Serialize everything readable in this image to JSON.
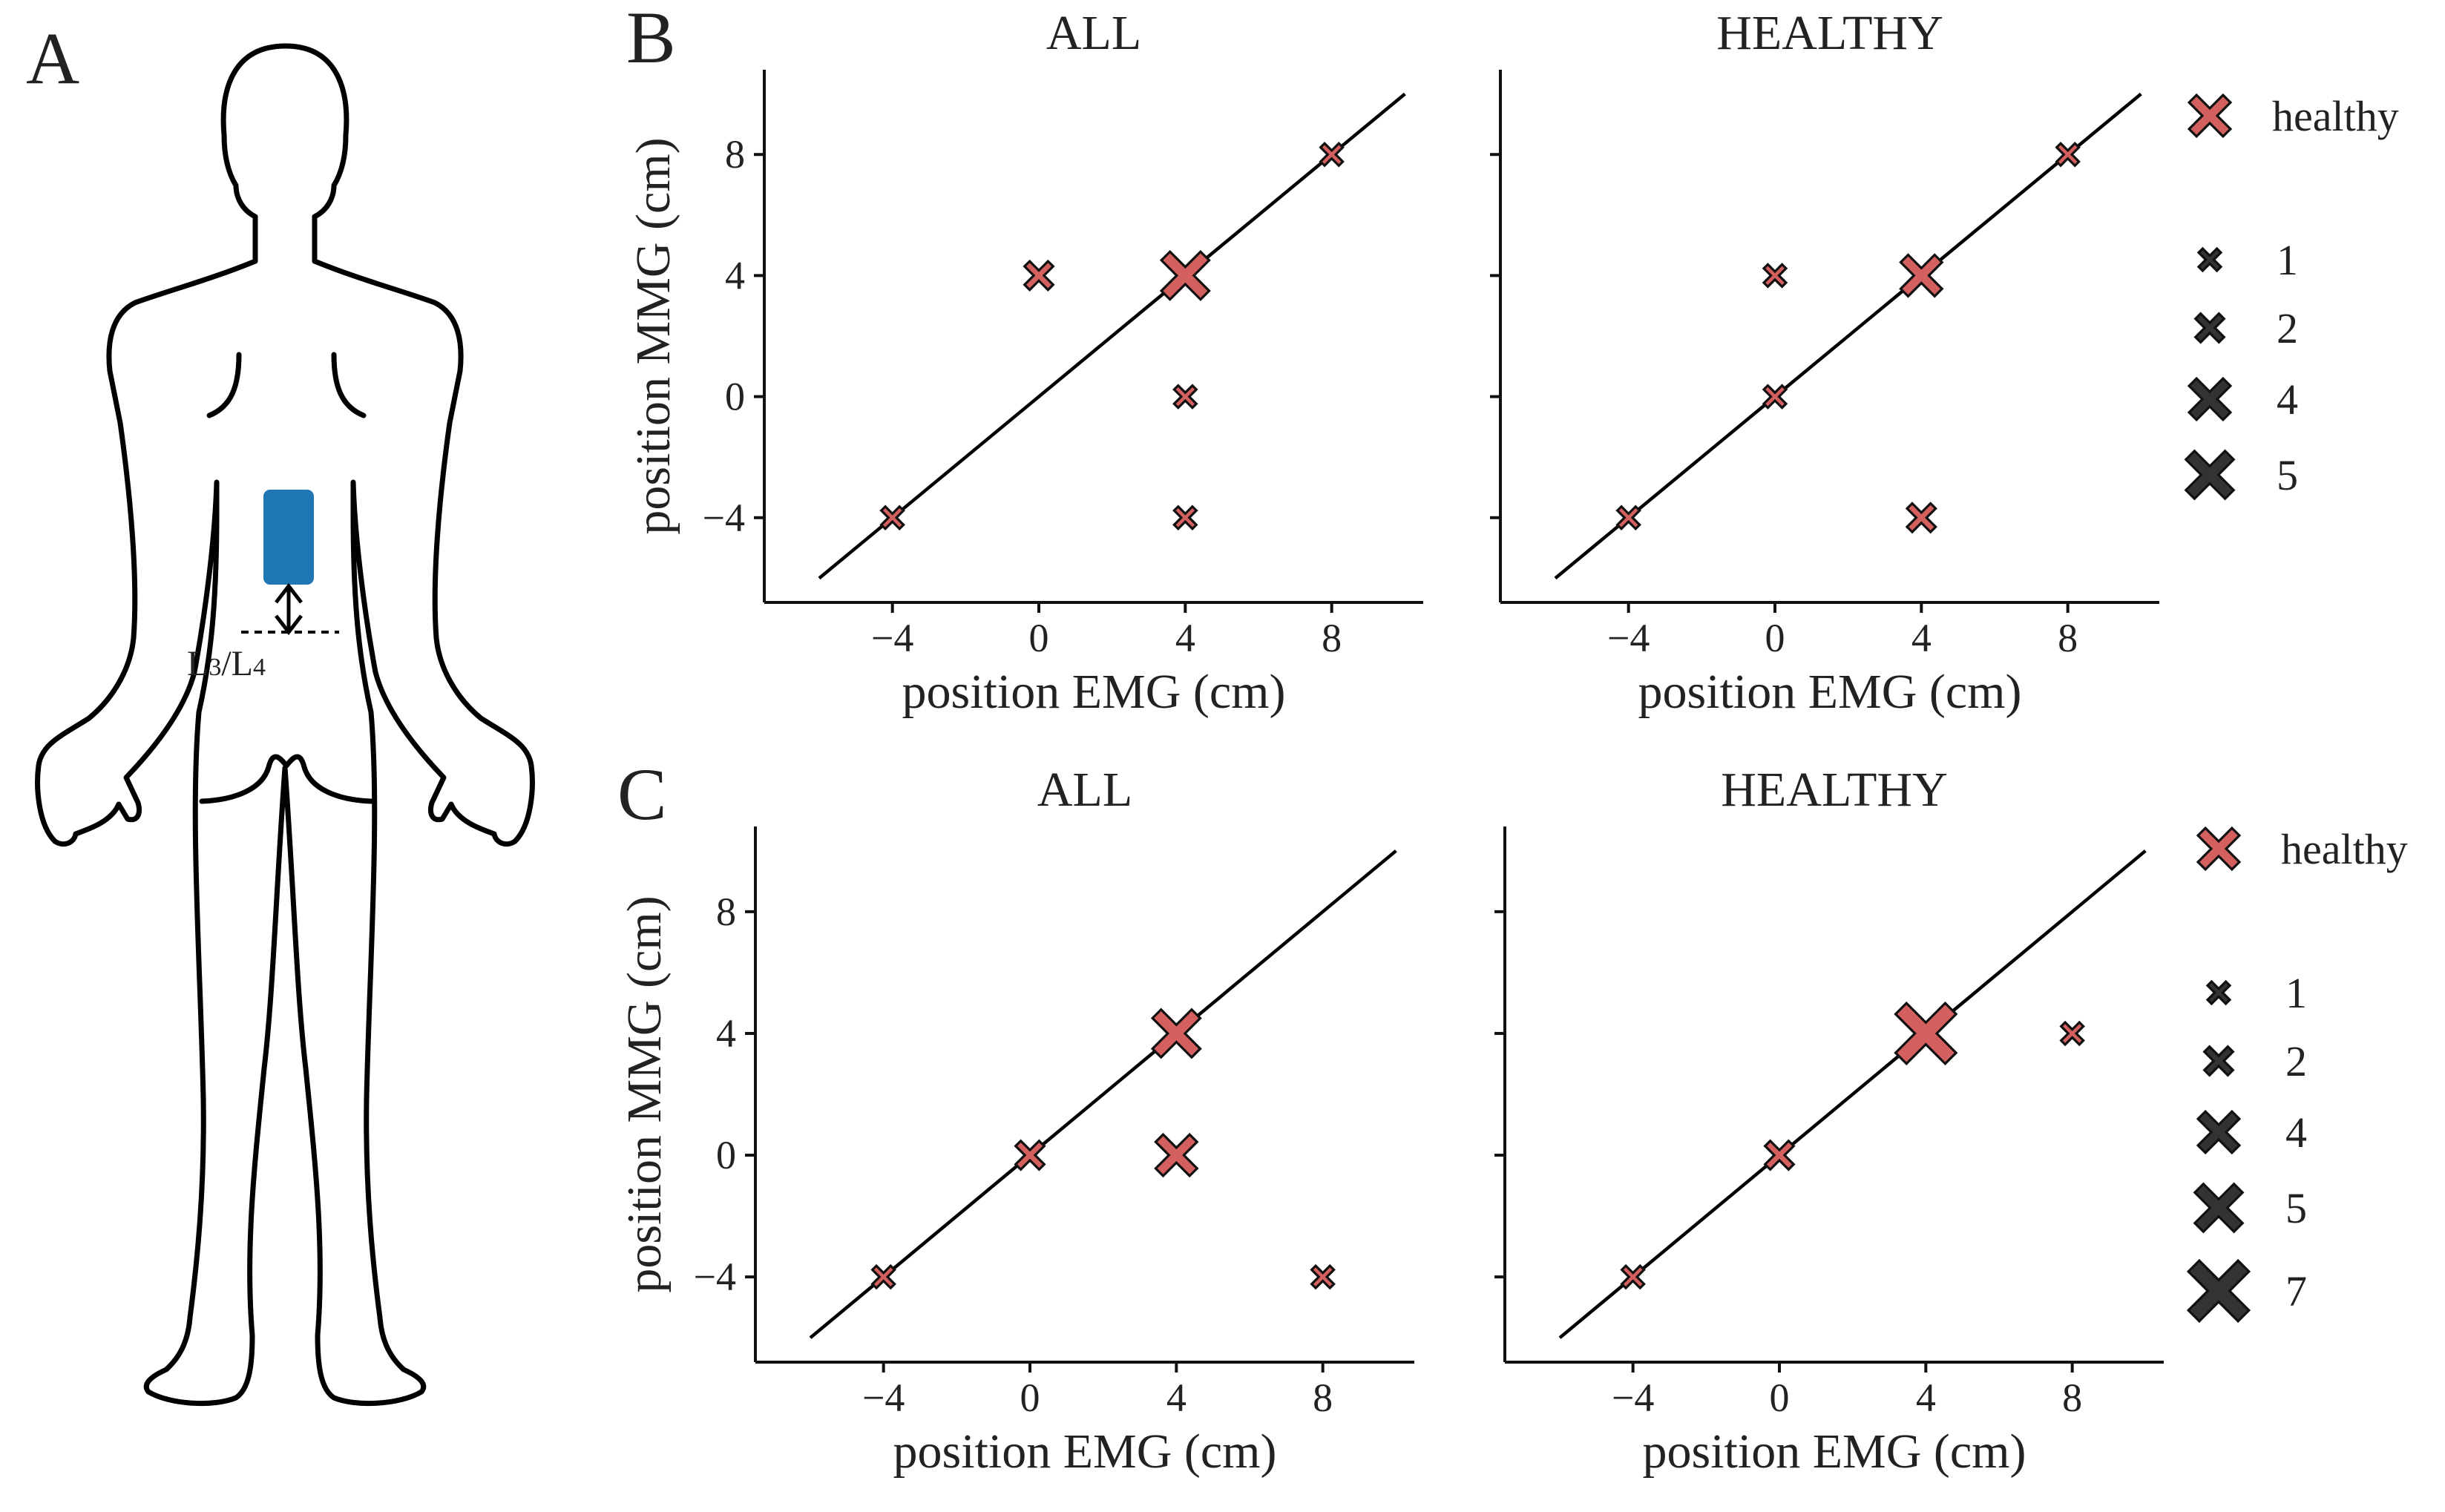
{
  "figure": {
    "colors": {
      "healthy_marker": "#d45f5f",
      "legend_size_marker": "#333333",
      "electrode": "#1f77b4",
      "line": "#000000"
    },
    "panel_a": {
      "letter": "A",
      "level_label_main": "L",
      "level_label_sub1": "3",
      "level_label_sep": "/L",
      "level_label_sub2": "4",
      "icons": [
        "body-outline-icon",
        "electrode-icon",
        "double-arrow-icon"
      ]
    }
  },
  "chart_data": [
    {
      "panel": "B",
      "type": "scatter",
      "title": "ALL",
      "xlabel": "position EMG (cm)",
      "ylabel": "position MMG (cm)",
      "xlim": [
        -7.5,
        10.5
      ],
      "ylim": [
        -6.8,
        10.8
      ],
      "xticks": [
        "−4",
        "0",
        "4",
        "8"
      ],
      "xtick_values": [
        -4,
        0,
        4,
        8
      ],
      "yticks": [
        "−4",
        "0",
        "4",
        "8"
      ],
      "ytick_values": [
        -4,
        0,
        4,
        8
      ],
      "identity_line": [
        -6,
        10
      ],
      "points": [
        {
          "x": -4,
          "y": -4,
          "count": 1
        },
        {
          "x": 0,
          "y": 4,
          "count": 2
        },
        {
          "x": 4,
          "y": 4,
          "count": 5
        },
        {
          "x": 4,
          "y": 0,
          "count": 1
        },
        {
          "x": 4,
          "y": -4,
          "count": 1
        },
        {
          "x": 8,
          "y": 8,
          "count": 1
        }
      ]
    },
    {
      "panel": "",
      "type": "scatter",
      "title": "HEALTHY",
      "xlabel": "position EMG (cm)",
      "ylabel": "",
      "xlim": [
        -7.5,
        10.5
      ],
      "ylim": [
        -6.8,
        10.8
      ],
      "xticks": [
        "−4",
        "0",
        "4",
        "8"
      ],
      "xtick_values": [
        -4,
        0,
        4,
        8
      ],
      "yticks": [],
      "ytick_values": [
        -4,
        0,
        4,
        8
      ],
      "identity_line": [
        -6,
        10
      ],
      "points": [
        {
          "x": -4,
          "y": -4,
          "count": 1
        },
        {
          "x": 0,
          "y": 4,
          "count": 1
        },
        {
          "x": 0,
          "y": 0,
          "count": 1
        },
        {
          "x": 4,
          "y": 4,
          "count": 4
        },
        {
          "x": 4,
          "y": -4,
          "count": 2
        },
        {
          "x": 8,
          "y": 8,
          "count": 1
        }
      ],
      "legend": {
        "color_entries": [
          {
            "label": "healthy"
          }
        ],
        "size_entries": [
          {
            "label": "1",
            "count": 1
          },
          {
            "label": "2",
            "count": 2
          },
          {
            "label": "4",
            "count": 4
          },
          {
            "label": "5",
            "count": 5
          }
        ]
      }
    },
    {
      "panel": "C",
      "type": "scatter",
      "title": "ALL",
      "xlabel": "position EMG (cm)",
      "ylabel": "position MMG (cm)",
      "xlim": [
        -7.5,
        10.5
      ],
      "ylim": [
        -6.8,
        10.8
      ],
      "xticks": [
        "−4",
        "0",
        "4",
        "8"
      ],
      "xtick_values": [
        -4,
        0,
        4,
        8
      ],
      "yticks": [
        "−4",
        "0",
        "4",
        "8"
      ],
      "ytick_values": [
        -4,
        0,
        4,
        8
      ],
      "identity_line": [
        -6,
        10
      ],
      "points": [
        {
          "x": -4,
          "y": -4,
          "count": 1
        },
        {
          "x": 0,
          "y": 0,
          "count": 2
        },
        {
          "x": 4,
          "y": 4,
          "count": 5
        },
        {
          "x": 4,
          "y": 0,
          "count": 4
        },
        {
          "x": 8,
          "y": -4,
          "count": 1
        }
      ]
    },
    {
      "panel": "",
      "type": "scatter",
      "title": "HEALTHY",
      "xlabel": "position EMG (cm)",
      "ylabel": "",
      "xlim": [
        -7.5,
        10.5
      ],
      "ylim": [
        -6.8,
        10.8
      ],
      "xticks": [
        "−4",
        "0",
        "4",
        "8"
      ],
      "xtick_values": [
        -4,
        0,
        4,
        8
      ],
      "yticks": [],
      "ytick_values": [
        -4,
        0,
        4,
        8
      ],
      "identity_line": [
        -6,
        10
      ],
      "points": [
        {
          "x": -4,
          "y": -4,
          "count": 1
        },
        {
          "x": 0,
          "y": 0,
          "count": 2
        },
        {
          "x": 4,
          "y": 4,
          "count": 7
        },
        {
          "x": 8,
          "y": 4,
          "count": 1
        }
      ],
      "legend": {
        "color_entries": [
          {
            "label": "healthy"
          }
        ],
        "size_entries": [
          {
            "label": "1",
            "count": 1
          },
          {
            "label": "2",
            "count": 2
          },
          {
            "label": "4",
            "count": 4
          },
          {
            "label": "5",
            "count": 5
          },
          {
            "label": "7",
            "count": 7
          }
        ]
      }
    }
  ]
}
